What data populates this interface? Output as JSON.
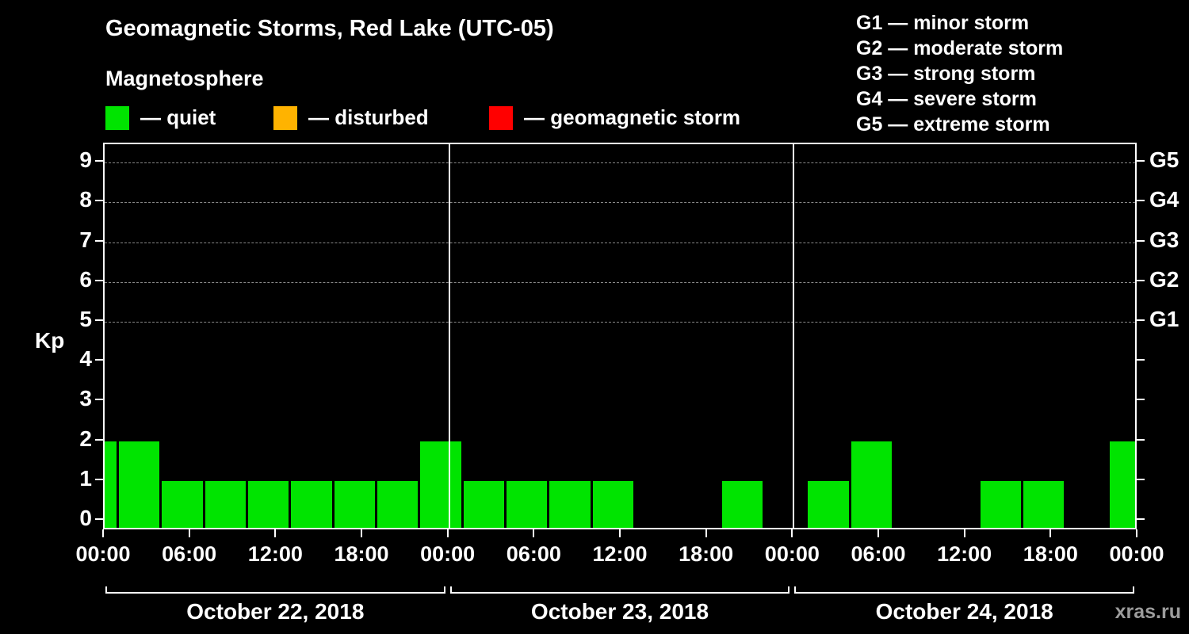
{
  "header": {
    "title": "Geomagnetic Storms, Red Lake (UTC-05)",
    "subtitle": "Magnetosphere"
  },
  "legend": {
    "quiet_label": "— quiet",
    "disturbed_label": "— disturbed",
    "storm_label": "— geomagnetic storm",
    "colors": {
      "quiet": "#00e400",
      "disturbed": "#ffb300",
      "storm": "#ff0000"
    }
  },
  "g_legend": {
    "items": [
      "G1 — minor storm",
      "G2 — moderate storm",
      "G3 — strong storm",
      "G4 — severe storm",
      "G5 — extreme storm"
    ]
  },
  "watermark": "xras.ru",
  "chart_data": {
    "type": "bar",
    "title": "Geomagnetic Storms, Red Lake (UTC-05)",
    "subtitle": "Magnetosphere",
    "ylabel": "Kp",
    "ylim": [
      0,
      9
    ],
    "interval_hours": 3,
    "bar_color": "#00e400",
    "grid": "dashed horizontal lines at Kp 5-9 only",
    "grid_dashed_at": [
      5,
      6,
      7,
      8,
      9
    ],
    "y_ticks": [
      0,
      1,
      2,
      3,
      4,
      5,
      6,
      7,
      8,
      9
    ],
    "right_axis": [
      {
        "kp": 9,
        "label": "G5"
      },
      {
        "kp": 8,
        "label": "G4"
      },
      {
        "kp": 7,
        "label": "G3"
      },
      {
        "kp": 6,
        "label": "G2"
      },
      {
        "kp": 5,
        "label": "G1"
      }
    ],
    "x_tick_labels": [
      "00:00",
      "06:00",
      "12:00",
      "18:00",
      "00:00",
      "06:00",
      "12:00",
      "18:00",
      "00:00",
      "06:00",
      "12:00",
      "18:00",
      "00:00"
    ],
    "partial_bar_at_left_edge": 2,
    "days": [
      {
        "date": "October 22, 2018",
        "values": [
          2,
          1,
          1,
          1,
          1,
          1,
          1,
          2
        ]
      },
      {
        "date": "October 23, 2018",
        "values": [
          1,
          1,
          1,
          1,
          0,
          0,
          1,
          0
        ]
      },
      {
        "date": "October 24, 2018",
        "values": [
          1,
          2,
          0,
          0,
          1,
          1,
          0,
          2
        ]
      }
    ]
  }
}
